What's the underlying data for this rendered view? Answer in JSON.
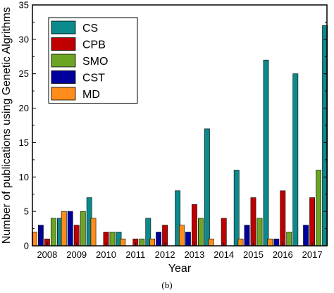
{
  "chart_data": {
    "type": "bar",
    "ylabel": "Number of publications using Genetic Algrithms",
    "xlabel": "Year",
    "ylim": [
      0,
      35
    ],
    "yticks": [
      0,
      5,
      10,
      15,
      20,
      25,
      30,
      35
    ],
    "categories": [
      "2008",
      "2009",
      "2010",
      "2011",
      "2012",
      "2013",
      "2014",
      "2015",
      "2016",
      "2017"
    ],
    "legend_position": "top-left",
    "grid": false,
    "series": [
      {
        "name": "MD",
        "color": "#ff8c1a",
        "values": [
          2,
          5,
          4,
          1,
          1,
          3,
          1,
          1,
          1,
          0
        ]
      },
      {
        "name": "CST",
        "color": "#00009c",
        "values": [
          3,
          5,
          0,
          0,
          2,
          2,
          0,
          3,
          1,
          3
        ]
      },
      {
        "name": "CPB",
        "color": "#c00000",
        "values": [
          1,
          3,
          2,
          1,
          3,
          6,
          4,
          7,
          8,
          7
        ]
      },
      {
        "name": "SMO",
        "color": "#6ca524",
        "values": [
          4,
          5,
          2,
          1,
          0,
          4,
          0,
          4,
          2,
          11
        ]
      },
      {
        "name": "CS",
        "color": "#0a8a8a",
        "values": [
          4,
          7,
          2,
          4,
          8,
          17,
          11,
          27,
          25,
          32
        ]
      }
    ],
    "legend_order": [
      "CS",
      "CPB",
      "SMO",
      "CST",
      "MD"
    ]
  },
  "caption": "(b)"
}
